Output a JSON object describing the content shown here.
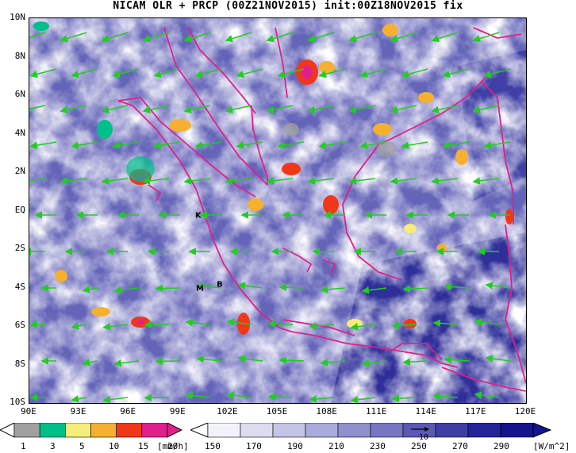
{
  "title": "NICAM OLR + PRCP (00Z21NOV2015) init:00Z18NOV2015 fix",
  "lat_labels": [
    "10N",
    "8N",
    "6N",
    "4N",
    "2N",
    "EQ",
    "2S",
    "4S",
    "6S",
    "8S",
    "10S"
  ],
  "lon_labels": [
    "90E",
    "93E",
    "96E",
    "99E",
    "102E",
    "105E",
    "108E",
    "111E",
    "114E",
    "117E",
    "120E"
  ],
  "station_markers": [
    {
      "label": "K",
      "lon": 100.2,
      "lat": -0.2
    },
    {
      "label": "M",
      "lon": 100.3,
      "lat": -4.0
    },
    {
      "label": "B",
      "lon": 101.5,
      "lat": -3.8
    }
  ],
  "precip_colorbar": {
    "ticks": [
      "1",
      "3",
      "5",
      "10",
      "15",
      "20"
    ],
    "unit": "[mm/h]",
    "colors": [
      "#a0a0a0",
      "#00c08a",
      "#f5ec7a",
      "#f5b030",
      "#f03818",
      "#e0208a"
    ]
  },
  "olr_colorbar": {
    "ticks": [
      "150",
      "170",
      "190",
      "210",
      "230",
      "250",
      "270",
      "290"
    ],
    "unit": "[W/m^2]",
    "colors": [
      "#f2f2fa",
      "#dcdcf0",
      "#c4c4e6",
      "#aaaadc",
      "#9090cf",
      "#7676c2",
      "#5a5ab4",
      "#3e3ea4",
      "#24249a",
      "#14148c"
    ]
  },
  "vector_reference_label": "10"
}
